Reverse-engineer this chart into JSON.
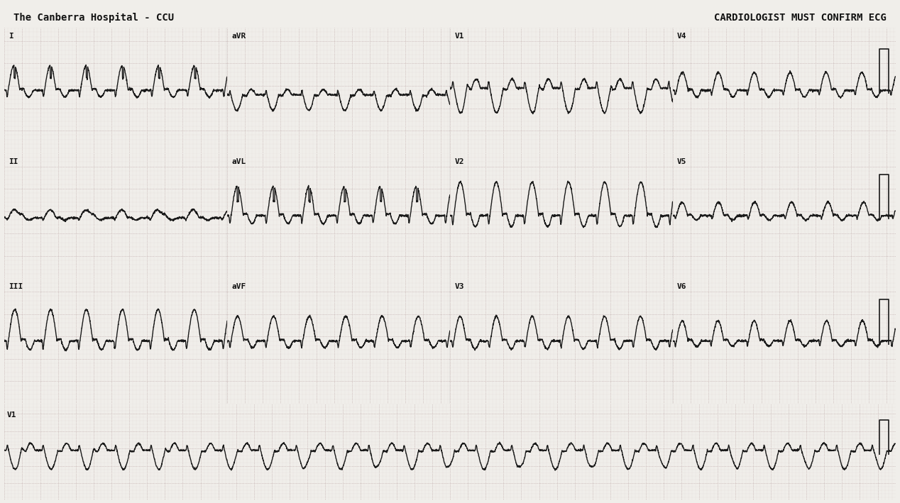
{
  "title_left": "The Canberra Hospital - CCU",
  "title_right": "CARDIOLOGIST MUST CONFIRM ECG",
  "background_color": "#f0eeea",
  "grid_major_color": "#b8a0a0",
  "grid_minor_color": "#d8c8c8",
  "line_color": "#1a1a1a",
  "text_color": "#111111",
  "paper_color": "#f0eeea",
  "row_labels": [
    [
      "I",
      "aVR",
      "V1",
      "V4"
    ],
    [
      "II",
      "aVL",
      "V2",
      "V5"
    ],
    [
      "III",
      "aVF",
      "V3",
      "V6"
    ],
    [
      "V1"
    ]
  ],
  "sample_rate": 500,
  "duration_per_col": 2.5,
  "title_fontsize": 10,
  "label_fontsize": 8,
  "line_width": 1.0
}
